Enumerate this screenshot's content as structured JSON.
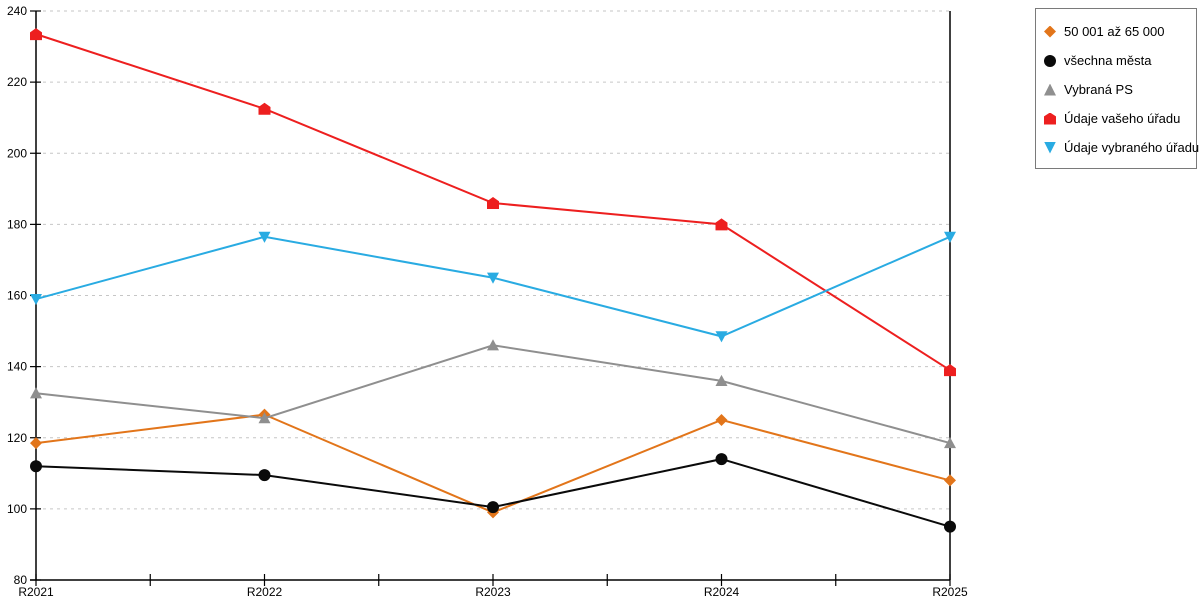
{
  "chart_data": {
    "type": "line",
    "title": "",
    "xlabel": "",
    "ylabel": "",
    "categories": [
      "R2021",
      "R2022",
      "R2023",
      "R2024",
      "R2025"
    ],
    "series": [
      {
        "name": "50 001 až 65 000",
        "color": "#E2751A",
        "marker": "diamond",
        "values": [
          118.5,
          126.5,
          99,
          125,
          108
        ]
      },
      {
        "name": "všechna města",
        "color": "#0A0A0A",
        "marker": "circle",
        "values": [
          112,
          109.5,
          100.5,
          114,
          95
        ]
      },
      {
        "name": "Vybraná PS",
        "color": "#8F8F8F",
        "marker": "triangle-up",
        "values": [
          132.5,
          125.5,
          146,
          136,
          118.5
        ]
      },
      {
        "name": "Údaje vašeho úřadu",
        "color": "#ED1F1F",
        "marker": "house",
        "values": [
          233.5,
          212.5,
          186,
          180,
          139
        ]
      },
      {
        "name": "Údaje vybraného úřadu",
        "color": "#29ABE2",
        "marker": "triangle-down",
        "values": [
          159,
          176.5,
          165,
          148.5,
          176.5
        ]
      }
    ],
    "ylim": [
      80,
      240
    ],
    "y_tick_step": 20,
    "y_tick_labels": [
      "80",
      "100",
      "120",
      "140",
      "160",
      "180",
      "200",
      "220",
      "240"
    ],
    "grid": "horizontal-dashed",
    "gridline_color": "#c6c6c6",
    "axis_color": "#000000",
    "legend_position": "top-right"
  }
}
